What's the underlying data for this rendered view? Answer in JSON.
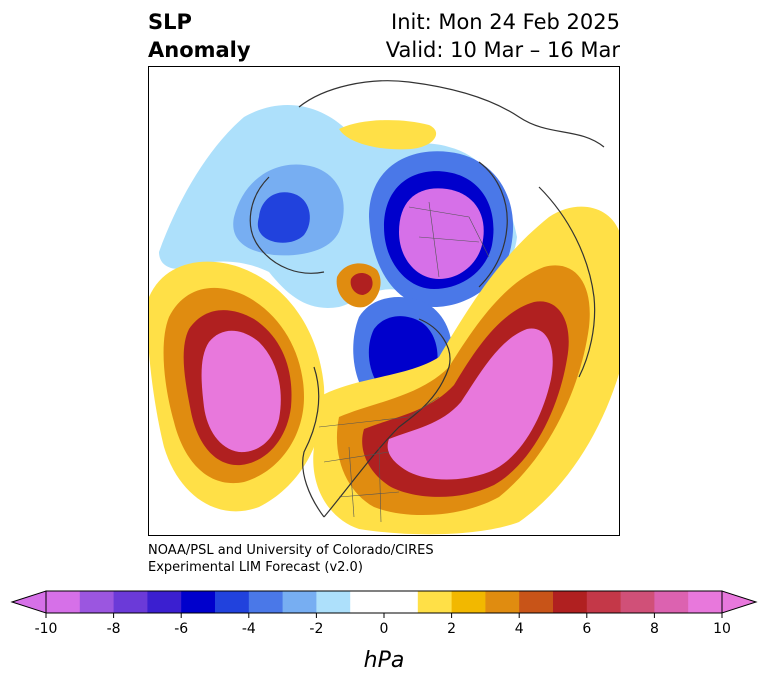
{
  "title": {
    "line1": "SLP",
    "line2": "Anomaly",
    "init": "Init: Mon 24 Feb 2025",
    "valid": "Valid: 10 Mar – 16 Mar"
  },
  "credit": {
    "line1": "NOAA/PSL and University of Colorado/CIRES",
    "line2": "Experimental LIM Forecast (v2.0)"
  },
  "colorbar": {
    "unit": "hPa",
    "ticks": [
      "-10",
      "-8",
      "-6",
      "-4",
      "-2",
      "0",
      "2",
      "4",
      "6",
      "8",
      "10"
    ],
    "colors": [
      "#d670e8",
      "#9b56e0",
      "#6b3ad8",
      "#3b1fd0",
      "#0000cc",
      "#2142dd",
      "#4a78e8",
      "#77aef2",
      "#ade0fb",
      "#ffffff",
      "#ffffff",
      "#ffe047",
      "#f2b800",
      "#e08c10",
      "#c85418",
      "#b02020",
      "#c43848",
      "#d05078",
      "#dc62b0",
      "#e878dc"
    ],
    "extend_low": "#d670e8",
    "extend_high": "#e878dc"
  },
  "anomaly_colors": {
    "neg_light": "#ade0fb",
    "neg_mid": "#4a78e8",
    "neg_strong": "#0000cc",
    "neg_max": "#d670e8",
    "pos_light": "#ffe047",
    "pos_mid": "#e08c10",
    "pos_strong": "#b02020",
    "pos_max": "#e878dc"
  }
}
